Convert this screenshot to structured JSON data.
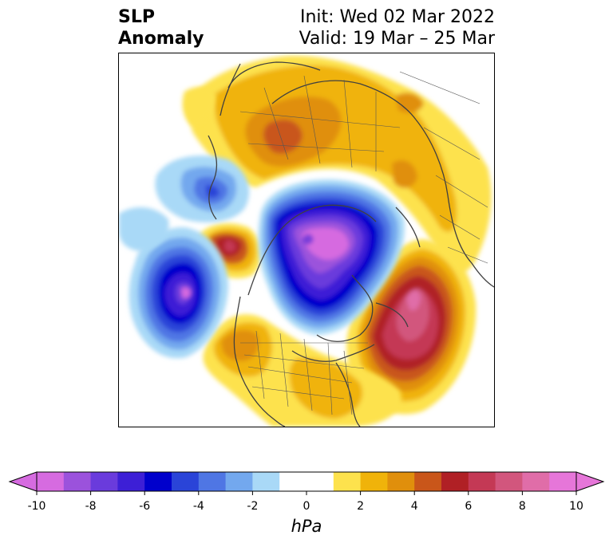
{
  "title": {
    "left_line1": "SLP",
    "left_line2": "Anomaly",
    "right_line1": "Init: Wed 02 Mar 2022",
    "right_line2": "Valid: 19 Mar – 25 Mar"
  },
  "colorbar": {
    "units": "hPa",
    "ticks": [
      "-10",
      "-8",
      "-6",
      "-4",
      "-2",
      "0",
      "2",
      "4",
      "6",
      "8",
      "10"
    ],
    "min": -10,
    "max": 10,
    "step": 1,
    "low_extend_color": "#d66be0",
    "high_extend_color": "#e676d9",
    "colors": [
      "#d66be0",
      "#9b52dc",
      "#6a3bdc",
      "#3d1fd6",
      "#0000cc",
      "#2a44d8",
      "#4f76e4",
      "#73a8ee",
      "#a9d9f7",
      "#ffffff",
      "#ffffff",
      "#fde24d",
      "#f0b30a",
      "#e08f0c",
      "#c9561a",
      "#b02025",
      "#c43955",
      "#d2567d",
      "#e06da8",
      "#e676d9"
    ]
  },
  "map": {
    "projection": "north-polar-stereographic",
    "features": [
      "coastlines",
      "country-borders",
      "state-borders"
    ],
    "anomalies": [
      {
        "name": "arctic-low",
        "min_hpa": -10
      },
      {
        "name": "north-pacific-low",
        "min_hpa": -10
      },
      {
        "name": "west-europe-low",
        "min_hpa": -6
      },
      {
        "name": "north-pacific-high",
        "max_hpa": 8
      },
      {
        "name": "siberian-high",
        "max_hpa": 6
      },
      {
        "name": "north-atlantic-high",
        "max_hpa": 10
      }
    ]
  }
}
